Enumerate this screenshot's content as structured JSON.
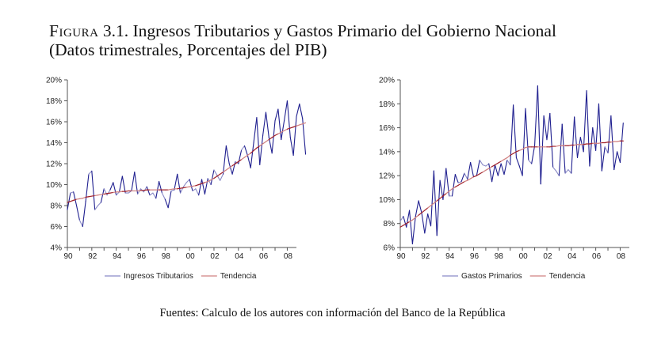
{
  "figure": {
    "label": "Figura",
    "number": "3.1.",
    "title": "Ingresos Tributarios y Gastos Primario del Gobierno Nacional",
    "subtitle": "(Datos trimestrales, Porcentajes del PIB)",
    "source": "Fuentes: Calculo de los autores con información del Banco de la República"
  },
  "colors": {
    "series": "#1f1f8f",
    "series_light": "#8a8ac6",
    "trend": "#a0202a",
    "trend_light": "#d08080",
    "axis": "#555555"
  },
  "chart_data": [
    {
      "type": "line",
      "title": "",
      "xlabel": "",
      "ylabel": "",
      "ylim": [
        4,
        20
      ],
      "yticks": [
        "4%",
        "6%",
        "8%",
        "10%",
        "12%",
        "14%",
        "16%",
        "18%",
        "20%"
      ],
      "ytick_values": [
        4,
        6,
        8,
        10,
        12,
        14,
        16,
        18,
        20
      ],
      "xticks": [
        "90",
        "92",
        "94",
        "96",
        "98",
        "00",
        "02",
        "04",
        "06",
        "08"
      ],
      "xtick_values": [
        1990,
        1992,
        1994,
        1996,
        1998,
        2000,
        2002,
        2004,
        2006,
        2008
      ],
      "xlim": [
        1990,
        2008.75
      ],
      "x_start": 1990,
      "x_step": 0.25,
      "grid": false,
      "legend": "bottom",
      "series": [
        {
          "name": "Ingresos Tributarios",
          "style": "series",
          "values": [
            7.6,
            9.2,
            9.3,
            8.0,
            6.6,
            6.0,
            8.4,
            11.0,
            11.3,
            7.6,
            8.0,
            8.3,
            9.6,
            9.0,
            9.5,
            10.2,
            9.0,
            9.3,
            10.8,
            9.2,
            9.2,
            9.4,
            11.2,
            9.1,
            9.6,
            9.3,
            9.8,
            9.0,
            9.2,
            8.7,
            10.3,
            9.2,
            8.6,
            7.8,
            9.4,
            9.5,
            11.0,
            9.2,
            9.8,
            10.2,
            10.5,
            9.4,
            9.6,
            9.0,
            10.5,
            9.1,
            10.6,
            10.0,
            11.4,
            10.9,
            10.4,
            11.0,
            13.7,
            12.0,
            11.0,
            12.2,
            12.0,
            13.3,
            13.7,
            12.8,
            11.6,
            14.0,
            16.4,
            11.9,
            14.7,
            16.9,
            14.5,
            13.0,
            16.1,
            17.2,
            14.3,
            16.1,
            18.0,
            14.5,
            12.8,
            16.5,
            17.7,
            16.3,
            12.9
          ]
        },
        {
          "name": "Tendencia",
          "style": "trend",
          "values": [
            8.3,
            8.4,
            8.5,
            8.6,
            8.65,
            8.7,
            8.8,
            8.85,
            8.9,
            8.95,
            9.0,
            9.05,
            9.1,
            9.15,
            9.2,
            9.25,
            9.3,
            9.3,
            9.35,
            9.35,
            9.4,
            9.4,
            9.4,
            9.4,
            9.45,
            9.45,
            9.5,
            9.5,
            9.5,
            9.5,
            9.5,
            9.5,
            9.5,
            9.5,
            9.55,
            9.6,
            9.6,
            9.65,
            9.7,
            9.75,
            9.8,
            9.85,
            9.9,
            10.0,
            10.1,
            10.2,
            10.3,
            10.45,
            10.6,
            10.8,
            11.0,
            11.2,
            11.4,
            11.6,
            11.8,
            12.0,
            12.2,
            12.4,
            12.6,
            12.8,
            13.0,
            13.25,
            13.5,
            13.7,
            13.9,
            14.1,
            14.3,
            14.5,
            14.7,
            14.85,
            15.0,
            15.15,
            15.3,
            15.4,
            15.5,
            15.6,
            15.7,
            15.8,
            15.9
          ]
        }
      ]
    },
    {
      "type": "line",
      "title": "",
      "xlabel": "",
      "ylabel": "",
      "ylim": [
        6,
        20
      ],
      "yticks": [
        "6%",
        "8%",
        "10%",
        "12%",
        "14%",
        "16%",
        "18%",
        "20%"
      ],
      "ytick_values": [
        6,
        8,
        10,
        12,
        14,
        16,
        18,
        20
      ],
      "xticks": [
        "90",
        "92",
        "94",
        "96",
        "98",
        "00",
        "02",
        "04",
        "06",
        "08"
      ],
      "xtick_values": [
        1990,
        1992,
        1994,
        1996,
        1998,
        2000,
        2002,
        2004,
        2006,
        2008
      ],
      "xlim": [
        1990,
        2008.75
      ],
      "x_start": 1990,
      "x_step": 0.25,
      "grid": false,
      "legend": "bottom",
      "series": [
        {
          "name": "Gastos Primarios",
          "style": "series",
          "values": [
            8.2,
            8.6,
            7.7,
            9.1,
            6.3,
            8.6,
            9.9,
            8.9,
            7.2,
            8.8,
            7.8,
            12.4,
            7.0,
            11.6,
            10.0,
            12.6,
            10.3,
            10.3,
            12.1,
            11.4,
            11.5,
            12.2,
            11.7,
            13.1,
            11.9,
            12.0,
            13.3,
            12.9,
            12.8,
            13.0,
            11.5,
            12.9,
            12.0,
            13.0,
            12.1,
            13.3,
            12.9,
            17.9,
            13.5,
            12.8,
            12.0,
            17.6,
            13.3,
            13.0,
            14.5,
            19.5,
            11.3,
            17.0,
            15.0,
            17.2,
            12.7,
            12.4,
            12.0,
            16.3,
            12.2,
            12.5,
            12.2,
            16.9,
            13.5,
            15.2,
            14.0,
            19.1,
            12.8,
            16.0,
            14.1,
            18.0,
            12.4,
            14.4,
            13.9,
            17.0,
            12.5,
            14.0,
            13.1,
            16.4
          ]
        },
        {
          "name": "Tendencia",
          "style": "trend",
          "values": [
            7.7,
            7.85,
            8.0,
            8.15,
            8.3,
            8.5,
            8.7,
            8.9,
            9.1,
            9.3,
            9.5,
            9.7,
            9.9,
            10.1,
            10.3,
            10.5,
            10.7,
            10.9,
            11.05,
            11.2,
            11.35,
            11.5,
            11.6,
            11.75,
            11.9,
            12.0,
            12.15,
            12.3,
            12.45,
            12.6,
            12.75,
            12.9,
            13.05,
            13.2,
            13.35,
            13.5,
            13.7,
            13.85,
            14.0,
            14.1,
            14.2,
            14.35,
            14.4,
            14.4,
            14.4,
            14.4,
            14.4,
            14.4,
            14.4,
            14.4,
            14.45,
            14.45,
            14.5,
            14.5,
            14.5,
            14.5,
            14.55,
            14.55,
            14.6,
            14.6,
            14.6,
            14.65,
            14.65,
            14.7,
            14.7,
            14.7,
            14.75,
            14.75,
            14.8,
            14.8,
            14.85,
            14.85,
            14.9,
            14.9
          ]
        }
      ]
    }
  ]
}
